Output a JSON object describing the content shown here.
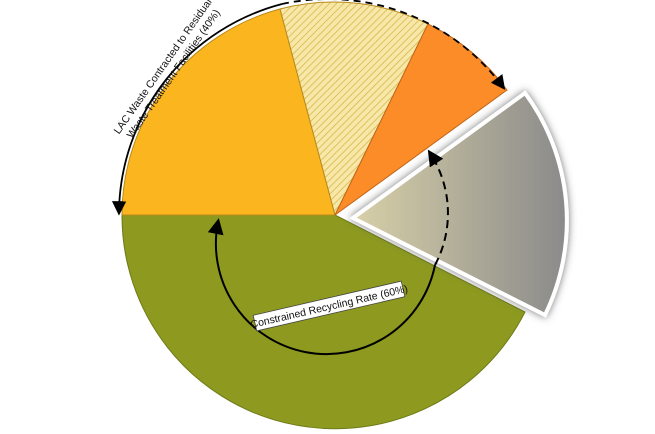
{
  "annotations": {
    "waste_facilities": [
      "LAC Waste Contracted to Residual",
      "Waste Treatment Facilities (40%)"
    ],
    "recycling_rate": "Constrained Recycling Rate (60%)"
  }
}
